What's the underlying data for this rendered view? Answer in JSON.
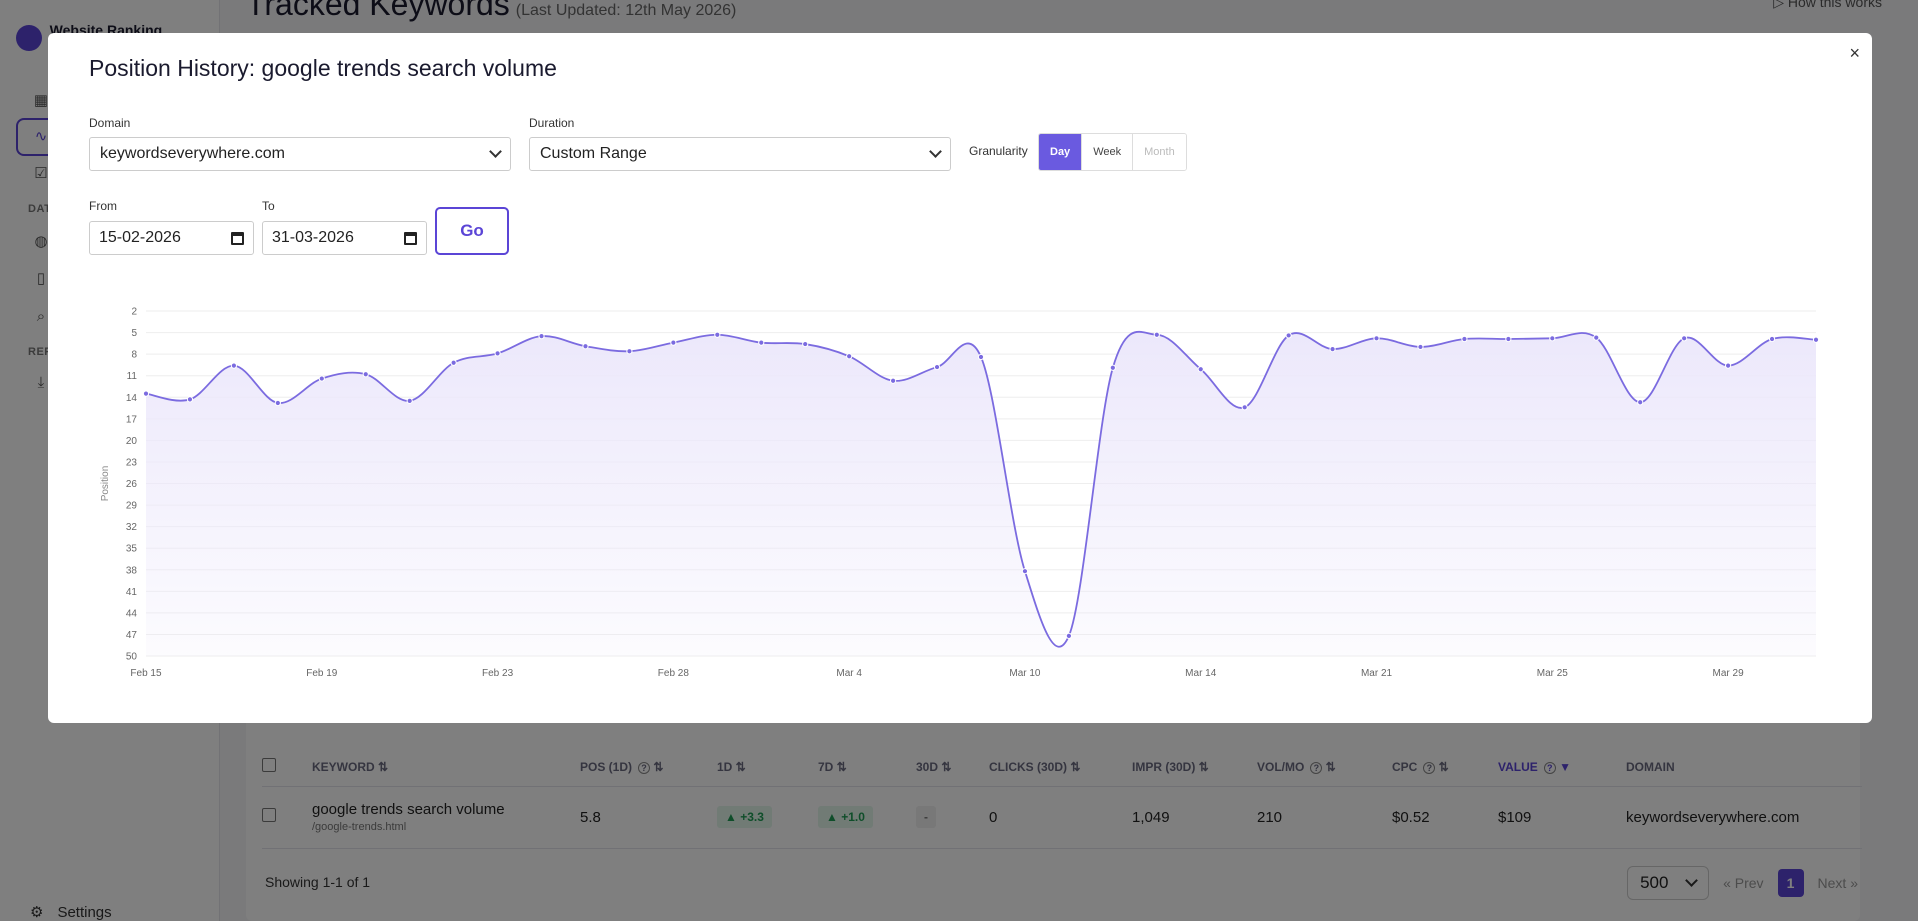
{
  "app": {
    "brand_name": "Website Ranking Checker",
    "page_title": "Tracked Keywords",
    "last_updated": "(Last Updated: 12th May 2026)",
    "how_link": "▷ How this works",
    "sidebar_sections": [
      "DAT",
      "REP"
    ],
    "settings_label": "Settings"
  },
  "table": {
    "columns": [
      "KEYWORD",
      "POS (1D)",
      "1D",
      "7D",
      "30D",
      "CLICKS (30D)",
      "IMPR (30D)",
      "VOL/MO",
      "CPC",
      "VALUE",
      "DOMAIN"
    ],
    "rows": [
      {
        "keyword": "google trends search volume",
        "url": "/google-trends.html",
        "pos": "5.8",
        "d1": "▲ +3.3",
        "d7": "▲ +1.0",
        "d30": "-",
        "clicks": "0",
        "impr": "1,049",
        "vol": "210",
        "cpc": "$0.52",
        "value": "$109",
        "domain": "keywordseverywhere.com"
      }
    ],
    "showing": "Showing 1-1 of 1",
    "per_page": "500",
    "prev": "« Prev",
    "current_page": "1",
    "next": "Next »"
  },
  "modal": {
    "title": "Position History: google trends search volume",
    "close": "×",
    "domain_label": "Domain",
    "domain_value": "keywordseverywhere.com",
    "duration_label": "Duration",
    "duration_value": "Custom Range",
    "granularity_label": "Granularity",
    "granularity_options": [
      "Day",
      "Week",
      "Month"
    ],
    "granularity_selected": "Day",
    "from_label": "From",
    "from_value": "15-02-2026",
    "to_label": "To",
    "to_value": "31-03-2026",
    "go_label": "Go"
  },
  "colors": {
    "accent": "#5b45d6",
    "line": "#7b6be0",
    "area": "#ece8fb",
    "positive": "#1f9d55"
  },
  "chart_data": {
    "type": "area",
    "title": "",
    "xlabel": "",
    "ylabel": "Position",
    "y_inverted": true,
    "ylim": [
      2,
      50
    ],
    "y_ticks": [
      2,
      5,
      8,
      11,
      14,
      17,
      20,
      23,
      26,
      29,
      32,
      35,
      38,
      41,
      44,
      47,
      50
    ],
    "x_tick_labels": [
      {
        "label": "Feb 15",
        "index": 0
      },
      {
        "label": "Feb 19",
        "index": 4
      },
      {
        "label": "Feb 23",
        "index": 8
      },
      {
        "label": "Feb 28",
        "index": 12
      },
      {
        "label": "Mar 4",
        "index": 16
      },
      {
        "label": "Mar 10",
        "index": 20
      },
      {
        "label": "Mar 14",
        "index": 24
      },
      {
        "label": "Mar 21",
        "index": 28
      },
      {
        "label": "Mar 25",
        "index": 32
      },
      {
        "label": "Mar 29",
        "index": 36
      }
    ],
    "grid": true,
    "series": [
      {
        "values": [
          13.5,
          14.3,
          9.6,
          14.8,
          11.4,
          10.8,
          14.5,
          9.2,
          7.9,
          5.5,
          6.9,
          7.6,
          6.4,
          5.3,
          6.4,
          6.6,
          8.3,
          11.7,
          9.8,
          8.4,
          38.2,
          47.2,
          9.9,
          5.3,
          10.1,
          15.4,
          5.4,
          7.3,
          5.8,
          7.0,
          5.9,
          5.9,
          5.8,
          5.7,
          14.7,
          5.8,
          9.6,
          5.9,
          6.0
        ]
      }
    ]
  }
}
